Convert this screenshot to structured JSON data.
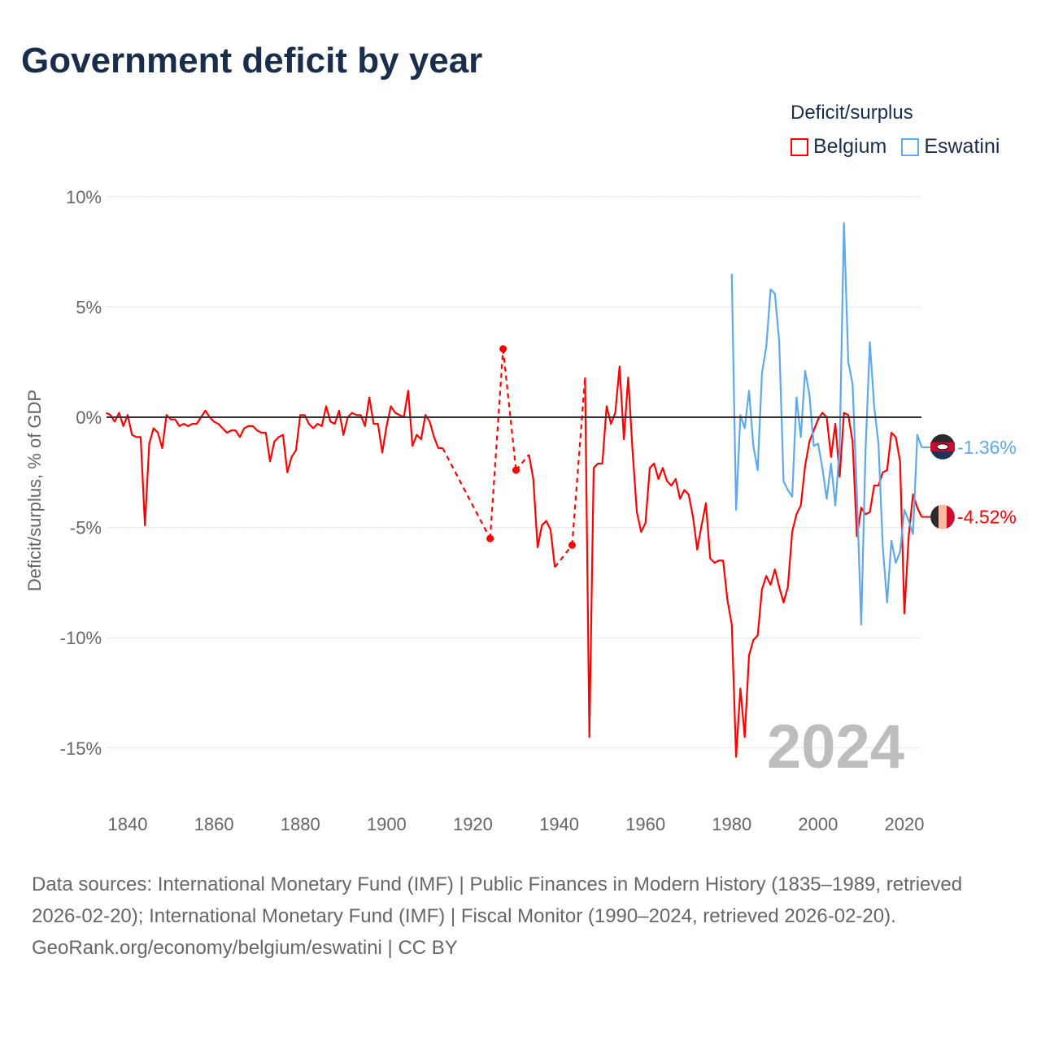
{
  "title": "Government deficit by year",
  "legend": {
    "title": "Deficit/surplus",
    "items": [
      {
        "label": "Belgium",
        "color": "#ff0000"
      },
      {
        "label": "Eswatini",
        "color": "#5fa8ec"
      }
    ]
  },
  "footer": {
    "sources": "Data sources: International Monetary Fund (IMF) | Public Finances in Modern History (1835–1989, retrieved 2026-02-20); International Monetary Fund (IMF) | Fiscal Monitor (1990–2024, retrieved 2026-02-20).",
    "credit": "GeoRank.org/economy/belgium/eswatini | CC BY"
  },
  "chart_data": {
    "type": "line",
    "title": "Government deficit by year",
    "ylabel": "Deficit/surplus, % of GDP",
    "xlabel": "",
    "xlim": [
      1835,
      2024
    ],
    "ylim": [
      -17.5,
      11
    ],
    "x_ticks": [
      1840,
      1860,
      1880,
      1900,
      1920,
      1940,
      1960,
      1980,
      2000,
      2020
    ],
    "y_ticks": [
      {
        "v": 10,
        "label": "10%"
      },
      {
        "v": 5,
        "label": "5%"
      },
      {
        "v": 0,
        "label": "0%"
      },
      {
        "v": -5,
        "label": "-5%"
      },
      {
        "v": -10,
        "label": "-10%"
      },
      {
        "v": -15,
        "label": "-15%"
      }
    ],
    "current_year": "2024",
    "series": [
      {
        "name": "Belgium",
        "color": "#ff0000",
        "end_label": "-4.52%",
        "x": [
          1835,
          1836,
          1837,
          1838,
          1839,
          1840,
          1841,
          1842,
          1843,
          1844,
          1845,
          1846,
          1847,
          1848,
          1849,
          1850,
          1851,
          1852,
          1853,
          1854,
          1855,
          1856,
          1857,
          1858,
          1859,
          1860,
          1861,
          1862,
          1863,
          1864,
          1865,
          1866,
          1867,
          1868,
          1869,
          1870,
          1871,
          1872,
          1873,
          1874,
          1875,
          1876,
          1877,
          1878,
          1879,
          1880,
          1881,
          1882,
          1883,
          1884,
          1885,
          1886,
          1887,
          1888,
          1889,
          1890,
          1891,
          1892,
          1893,
          1894,
          1895,
          1896,
          1897,
          1898,
          1899,
          1900,
          1901,
          1902,
          1903,
          1904,
          1905,
          1906,
          1907,
          1908,
          1909,
          1910,
          1911,
          1912,
          1913,
          1924,
          1927,
          1930,
          1933,
          1934,
          1935,
          1936,
          1937,
          1938,
          1939,
          1943,
          1946,
          1947,
          1948,
          1949,
          1950,
          1951,
          1952,
          1953,
          1954,
          1955,
          1956,
          1957,
          1958,
          1959,
          1960,
          1961,
          1962,
          1963,
          1964,
          1965,
          1966,
          1967,
          1968,
          1969,
          1970,
          1971,
          1972,
          1973,
          1974,
          1975,
          1976,
          1977,
          1978,
          1979,
          1980,
          1981,
          1982,
          1983,
          1984,
          1985,
          1986,
          1987,
          1988,
          1989,
          1990,
          1991,
          1992,
          1993,
          1994,
          1995,
          1996,
          1997,
          1998,
          1999,
          2000,
          2001,
          2002,
          2003,
          2004,
          2005,
          2006,
          2007,
          2008,
          2009,
          2010,
          2011,
          2012,
          2013,
          2014,
          2015,
          2016,
          2017,
          2018,
          2019,
          2020,
          2021,
          2022,
          2023,
          2024
        ],
        "y": [
          0.2,
          0.1,
          -0.2,
          0.2,
          -0.4,
          0.1,
          -0.8,
          -0.9,
          -0.9,
          -4.9,
          -1.2,
          -0.5,
          -0.7,
          -1.4,
          0.1,
          -0.1,
          -0.1,
          -0.4,
          -0.3,
          -0.4,
          -0.3,
          -0.3,
          0.0,
          0.3,
          0.0,
          -0.2,
          -0.3,
          -0.5,
          -0.7,
          -0.6,
          -0.6,
          -0.9,
          -0.5,
          -0.4,
          -0.4,
          -0.6,
          -0.7,
          -0.7,
          -2.0,
          -1.1,
          -0.9,
          -0.8,
          -2.5,
          -1.8,
          -1.5,
          0.1,
          0.1,
          -0.3,
          -0.5,
          -0.3,
          -0.4,
          0.5,
          -0.2,
          -0.3,
          0.3,
          -0.8,
          0.0,
          0.2,
          0.1,
          0.1,
          -0.4,
          0.9,
          -0.3,
          -0.3,
          -1.6,
          -0.4,
          0.5,
          0.2,
          0.1,
          0.0,
          1.2,
          -1.3,
          -0.8,
          -1.0,
          0.1,
          -0.2,
          -0.9,
          -1.4,
          -1.4,
          -5.5,
          3.1,
          -2.4,
          -1.7,
          -2.8,
          -5.9,
          -4.9,
          -4.7,
          -5.1,
          -6.8,
          -5.8,
          1.8,
          -14.5,
          -2.3,
          -2.1,
          -2.1,
          0.5,
          -0.3,
          0.2,
          2.3,
          -1.0,
          1.8,
          -1.5,
          -4.3,
          -5.2,
          -4.8,
          -2.3,
          -2.1,
          -2.8,
          -2.3,
          -2.9,
          -3.1,
          -2.8,
          -3.7,
          -3.3,
          -3.5,
          -4.5,
          -6.0,
          -4.9,
          -3.9,
          -6.4,
          -6.6,
          -6.5,
          -6.5,
          -8.3,
          -9.4,
          -15.4,
          -12.3,
          -14.5,
          -10.8,
          -10.1,
          -9.9,
          -7.8,
          -7.2,
          -7.6,
          -6.9,
          -7.7,
          -8.4,
          -7.7,
          -5.2,
          -4.4,
          -4.0,
          -2.2,
          -1.1,
          -0.6,
          -0.1,
          0.2,
          0.0,
          -1.8,
          -0.3,
          -2.7,
          0.2,
          0.1,
          -1.1,
          -5.4,
          -4.1,
          -4.4,
          -4.3,
          -3.1,
          -3.1,
          -2.5,
          -2.4,
          -0.7,
          -0.9,
          -2.0,
          -8.9,
          -5.4,
          -3.5,
          -4.1,
          -4.52
        ]
      },
      {
        "name": "Eswatini",
        "color": "#5fa8ec",
        "end_label": "-1.36%",
        "x": [
          1980,
          1981,
          1982,
          1983,
          1984,
          1985,
          1986,
          1987,
          1988,
          1989,
          1990,
          1991,
          1992,
          1993,
          1994,
          1995,
          1996,
          1997,
          1998,
          1999,
          2000,
          2001,
          2002,
          2003,
          2004,
          2005,
          2006,
          2007,
          2008,
          2009,
          2010,
          2011,
          2012,
          2013,
          2014,
          2015,
          2016,
          2017,
          2018,
          2019,
          2020,
          2021,
          2022,
          2023,
          2024
        ],
        "y": [
          6.5,
          -4.2,
          0.1,
          -0.5,
          1.2,
          -1.3,
          -2.4,
          2.0,
          3.2,
          5.8,
          5.6,
          3.4,
          -2.9,
          -3.3,
          -3.6,
          0.9,
          -0.9,
          2.1,
          1.0,
          -1.3,
          -1.2,
          -2.3,
          -3.7,
          -2.1,
          -4.0,
          -1.4,
          8.8,
          2.5,
          1.5,
          -3.5,
          -9.4,
          -1.5,
          3.4,
          0.5,
          -1.2,
          -5.9,
          -8.4,
          -5.6,
          -6.6,
          -6.1,
          -4.2,
          -4.7,
          -5.3,
          -0.8,
          -1.36
        ]
      }
    ]
  }
}
